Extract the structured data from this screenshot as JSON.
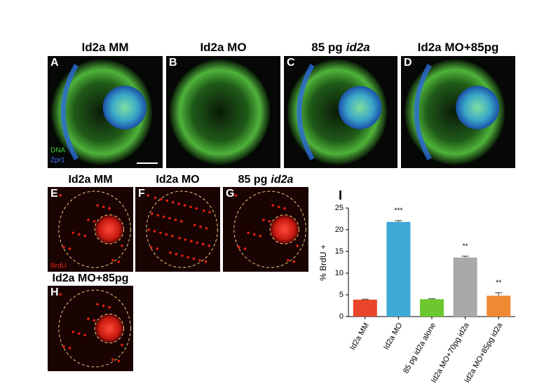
{
  "panels": [
    {
      "letter": "A",
      "title": "Id2a MM"
    },
    {
      "letter": "B",
      "title": "Id2a MO"
    },
    {
      "letter": "C",
      "title": "85 pg",
      "title_italic": "id2a"
    },
    {
      "letter": "D",
      "title": "Id2a MO+85pg"
    },
    {
      "letter": "E",
      "title": "Id2a MM"
    },
    {
      "letter": "F",
      "title": "Id2a MO"
    },
    {
      "letter": "G",
      "title": "85 pg",
      "title_italic": "id2a"
    },
    {
      "letter": "H",
      "title": "Id2a MO+85pg"
    }
  ],
  "stain_labels": [
    "DNA",
    "Zpr1",
    "BrdU"
  ],
  "chart_data": {
    "type": "bar",
    "panel_letter": "I",
    "y_label": "% BrdU +",
    "categories": [
      "Id2a MM",
      "Id2a MO",
      "85 pg id2a alone",
      "Id2a MO+70pg id2a",
      "Id2a MO+85pg id2a"
    ],
    "values": [
      3.9,
      21.8,
      4.0,
      13.6,
      4.8
    ],
    "errors": [
      0.1,
      0.3,
      0.1,
      0.3,
      0.7
    ],
    "significance": [
      null,
      "***",
      null,
      "**",
      "**"
    ],
    "colors": [
      "#e8452c",
      "#3fa9d8",
      "#6cc82e",
      "#a9a9a9",
      "#f08a32"
    ],
    "ylim": [
      0,
      25
    ],
    "yticks": [
      0,
      5,
      10,
      15,
      20,
      25
    ]
  }
}
